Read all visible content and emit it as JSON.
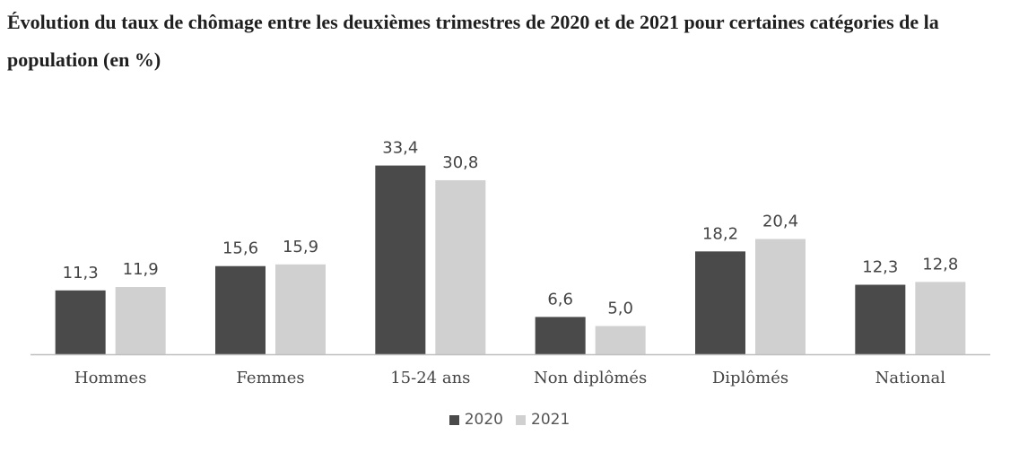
{
  "chart_data": {
    "type": "bar",
    "title": "Évolution du taux de chômage entre les deuxièmes trimestres de 2020 et de 2021 pour certaines catégories de la population (en %)",
    "xlabel": "",
    "ylabel": "",
    "ylim": [
      0,
      35
    ],
    "grid": false,
    "legend_position": "bottom-center",
    "categories": [
      "Hommes",
      "Femmes",
      "15-24 ans",
      "Non diplômés",
      "Diplômés",
      "National"
    ],
    "series": [
      {
        "name": "2020",
        "color": "#4a4a4a",
        "values": [
          11.3,
          15.6,
          33.4,
          6.6,
          18.2,
          12.3
        ],
        "labels": [
          "11,3",
          "15,6",
          "33,4",
          "6,6",
          "18,2",
          "12,3"
        ]
      },
      {
        "name": "2021",
        "color": "#d0d0d0",
        "values": [
          11.9,
          15.9,
          30.8,
          5.0,
          20.4,
          12.8
        ],
        "labels": [
          "11,9",
          "15,9",
          "30,8",
          "5,0",
          "20,4",
          "12,8"
        ]
      }
    ]
  }
}
